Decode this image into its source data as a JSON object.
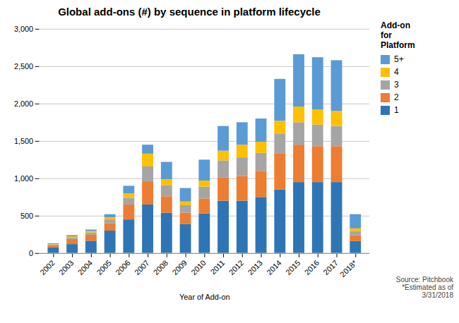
{
  "chart_data": {
    "type": "bar",
    "stacked": true,
    "title": "Global add-ons (#) by sequence in platform lifecycle",
    "xlabel": "Year of Add-on",
    "categories": [
      "2002",
      "2003",
      "2004",
      "2005",
      "2006",
      "2007",
      "2008",
      "2009",
      "2010",
      "2011",
      "2012",
      "2013",
      "2014",
      "2015",
      "2016",
      "2017",
      "2018*"
    ],
    "series": [
      {
        "name": "1",
        "color": "#2E75B6",
        "values": [
          75,
          120,
          165,
          300,
          450,
          650,
          540,
          390,
          530,
          700,
          700,
          750,
          850,
          950,
          950,
          950,
          160
        ]
      },
      {
        "name": "2",
        "color": "#ED7D31",
        "values": [
          30,
          70,
          80,
          100,
          200,
          310,
          220,
          150,
          200,
          310,
          330,
          350,
          480,
          500,
          480,
          480,
          80
        ]
      },
      {
        "name": "3",
        "color": "#A5A5A5",
        "values": [
          10,
          20,
          30,
          50,
          90,
          200,
          150,
          100,
          160,
          230,
          250,
          240,
          270,
          300,
          290,
          270,
          50
        ]
      },
      {
        "name": "4",
        "color": "#FFC000",
        "values": [
          5,
          15,
          20,
          30,
          60,
          170,
          80,
          50,
          80,
          130,
          170,
          150,
          170,
          210,
          200,
          200,
          40
        ]
      },
      {
        "name": "5+",
        "color": "#5B9BD5",
        "values": [
          10,
          15,
          20,
          40,
          100,
          120,
          230,
          180,
          280,
          330,
          300,
          310,
          560,
          700,
          700,
          680,
          190
        ]
      }
    ],
    "legend_title": "Add-on\nfor\nPlatform",
    "legend": "right",
    "annotations": [
      "Source: Pitchbook\n*Estimated as of\n3/31/2018"
    ],
    "ylim": [
      0,
      3000
    ],
    "yticks": [
      0,
      500,
      1000,
      1500,
      2000,
      2500,
      3000
    ],
    "grid": true
  }
}
